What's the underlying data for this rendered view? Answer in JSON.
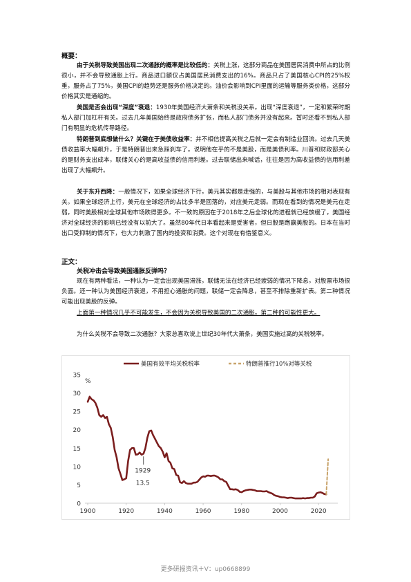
{
  "summary": {
    "heading": "概要：",
    "p1": {
      "bold": "由于关税导致美国出现二次通胀的概率是比较低的：",
      "text": "关税上涨，这部分商品在美国居民消费中所占的比例很小，并不会导致通胀上行。商品进口额仅占美国居民消费支出的16%。商品只占了美国核心CPI的25%权重，服务占了75%，美国CPI的趋势还是服务价格决定的。油价会影响到CPI里面的运输等服务类价格，这部分价格其实是通缩的。"
    },
    "p2": {
      "bold": "美国是否会出现“深度”衰退：",
      "text": "1930年美国经济大萧条和关税没关系。出现“深度衰退”，一定和繁荣时期私人部门加杠杆有关。过去几年美国始终是政府债务扩张，而私人部门债务并没有起来。暂时还看不到私人部门有明显的危机传导路径。"
    },
    "p3": {
      "bold": "特朗普到底想做什么？关键在于美债收益率：",
      "text": "并不相信提高关税之后就一定会有制造业回流。过去几天美债收益率大幅飙升，于是特朗普出来急踩刹车了。说明他在乎的不是美股，而是美债利率。川普和财政部关心的是财务支出成本，联储关心的是高收益债的信用利差。过去联储出来喊话，往往是因为高收益债的信用利差出现了大幅飙升。"
    },
    "p4": {
      "bold": "关于东升西降：",
      "text": "一般情况下，如果全球经济下行，美元其实都是走强的，与美股与其他市场的相对表现有关。如果全球经济上行，美元在全球经济的占比多半是回落的，对应美元走弱。而现在看到的情况是美元在走弱，同时美股相对全球其他市场跌得更多。不一致的原因在于2018年之后全球化的进程就已经放缓了，美国经济对全球经济的影响已经没有以前大了。虽然80年代日本看起来是受害者，但日股是跑赢美股的。日本在当时出口受抑制的情况下，也大力刺激了国内的投资和消费。这个对现在有借鉴意义。"
    }
  },
  "body": {
    "heading": "正文：",
    "q1": "关税冲击会导致美国通胀反弹吗？",
    "p1": "现在有两种看法，一种认为一定会出现美国滞涨，联储无法在经济已经疲弱的情况下降息，对股票市场很负面。还一种认为美国经济衰退，不用担心通胀的问题，联储一定会降息，甚至不排除重新扩表。第二种情况可能出现美股的反弹。",
    "p2": "上面第一种情况几乎不可能发生，不会因为关税导致美国的二次通胀。第二种的可能性更大。",
    "p3": "为什么关税不会导致二次通胀？大家总喜欢说上世纪30年代大萧条，美国实施过高的关税税率。"
  },
  "chart_data": {
    "type": "line",
    "ylabel": "%",
    "xlim": [
      1900,
      2030
    ],
    "ylim": [
      0,
      35
    ],
    "x_ticks": [
      1900,
      1920,
      1940,
      1960,
      1980,
      2000,
      2020
    ],
    "y_ticks": [
      0,
      5,
      10,
      15,
      20,
      25,
      30,
      35
    ],
    "legend_position": "top",
    "annotation": {
      "text_year": "1929",
      "text_value": "13.5",
      "x": 1929,
      "y": 13.5
    },
    "series": [
      {
        "name": "美国有效平均关税税率",
        "color": "#7b1e1e",
        "style": "solid",
        "points": [
          [
            1900,
            27.6
          ],
          [
            1901,
            29.0
          ],
          [
            1902,
            28.3
          ],
          [
            1903,
            28.0
          ],
          [
            1904,
            27.3
          ],
          [
            1905,
            26.0
          ],
          [
            1906,
            24.0
          ],
          [
            1907,
            23.5
          ],
          [
            1908,
            24.0
          ],
          [
            1909,
            23.2
          ],
          [
            1910,
            23.5
          ],
          [
            1911,
            21.5
          ],
          [
            1912,
            20.5
          ],
          [
            1913,
            18.0
          ],
          [
            1914,
            14.5
          ],
          [
            1915,
            12.5
          ],
          [
            1916,
            9.5
          ],
          [
            1917,
            8.0
          ],
          [
            1918,
            6.3
          ],
          [
            1919,
            6.5
          ],
          [
            1920,
            6.8
          ],
          [
            1921,
            11.5
          ],
          [
            1922,
            14.5
          ],
          [
            1923,
            15.0
          ],
          [
            1924,
            15.0
          ],
          [
            1925,
            13.2
          ],
          [
            1926,
            13.3
          ],
          [
            1927,
            13.8
          ],
          [
            1928,
            13.2
          ],
          [
            1929,
            13.5
          ],
          [
            1930,
            15.0
          ],
          [
            1931,
            17.8
          ],
          [
            1932,
            19.6
          ],
          [
            1933,
            19.8
          ],
          [
            1934,
            18.5
          ],
          [
            1935,
            17.5
          ],
          [
            1936,
            16.5
          ],
          [
            1937,
            15.5
          ],
          [
            1938,
            15.0
          ],
          [
            1939,
            14.0
          ],
          [
            1940,
            12.5
          ],
          [
            1941,
            13.6
          ],
          [
            1942,
            11.5
          ],
          [
            1943,
            11.0
          ],
          [
            1944,
            9.5
          ],
          [
            1945,
            9.3
          ],
          [
            1946,
            7.7
          ],
          [
            1947,
            7.5
          ],
          [
            1948,
            5.7
          ],
          [
            1949,
            5.5
          ],
          [
            1950,
            6.0
          ],
          [
            1951,
            5.5
          ],
          [
            1952,
            5.3
          ],
          [
            1953,
            5.3
          ],
          [
            1954,
            5.3
          ],
          [
            1955,
            5.6
          ],
          [
            1956,
            5.6
          ],
          [
            1957,
            5.8
          ],
          [
            1958,
            6.4
          ],
          [
            1959,
            7.0
          ],
          [
            1960,
            7.3
          ],
          [
            1961,
            7.2
          ],
          [
            1962,
            7.5
          ],
          [
            1963,
            7.5
          ],
          [
            1964,
            7.4
          ],
          [
            1965,
            7.5
          ],
          [
            1966,
            7.5
          ],
          [
            1967,
            7.3
          ],
          [
            1968,
            7.0
          ],
          [
            1969,
            6.5
          ],
          [
            1970,
            6.5
          ],
          [
            1971,
            6.0
          ],
          [
            1972,
            5.8
          ],
          [
            1973,
            4.8
          ],
          [
            1974,
            3.8
          ],
          [
            1975,
            3.8
          ],
          [
            1976,
            3.7
          ],
          [
            1977,
            3.8
          ],
          [
            1978,
            3.6
          ],
          [
            1979,
            3.1
          ],
          [
            1980,
            3.0
          ],
          [
            1981,
            3.3
          ],
          [
            1982,
            3.5
          ],
          [
            1983,
            3.6
          ],
          [
            1984,
            3.7
          ],
          [
            1985,
            3.7
          ],
          [
            1986,
            3.6
          ],
          [
            1987,
            3.5
          ],
          [
            1988,
            3.3
          ],
          [
            1989,
            3.3
          ],
          [
            1990,
            3.3
          ],
          [
            1991,
            3.2
          ],
          [
            1992,
            3.2
          ],
          [
            1993,
            3.3
          ],
          [
            1994,
            3.0
          ],
          [
            1995,
            2.8
          ],
          [
            1996,
            2.6
          ],
          [
            1997,
            2.2
          ],
          [
            1998,
            2.0
          ],
          [
            1999,
            1.9
          ],
          [
            2000,
            1.7
          ],
          [
            2001,
            1.6
          ],
          [
            2002,
            1.6
          ],
          [
            2003,
            1.5
          ],
          [
            2004,
            1.4
          ],
          [
            2005,
            1.5
          ],
          [
            2006,
            1.5
          ],
          [
            2007,
            1.4
          ],
          [
            2008,
            1.3
          ],
          [
            2009,
            1.3
          ],
          [
            2010,
            1.3
          ],
          [
            2011,
            1.3
          ],
          [
            2012,
            1.4
          ],
          [
            2013,
            1.3
          ],
          [
            2014,
            1.4
          ],
          [
            2015,
            1.4
          ],
          [
            2016,
            1.5
          ],
          [
            2017,
            1.5
          ],
          [
            2018,
            1.8
          ],
          [
            2019,
            2.7
          ],
          [
            2020,
            2.9
          ],
          [
            2021,
            3.0
          ],
          [
            2022,
            2.8
          ],
          [
            2023,
            2.5
          ],
          [
            2024,
            2.4
          ]
        ]
      },
      {
        "name": "特朗普推行10%对等关税",
        "color": "#c8a36a",
        "style": "dashed",
        "points": [
          [
            2024,
            2.4
          ],
          [
            2025,
            12.0
          ]
        ]
      }
    ]
  },
  "footer": {
    "text": "更多研报资讯＋V：up0668899"
  }
}
